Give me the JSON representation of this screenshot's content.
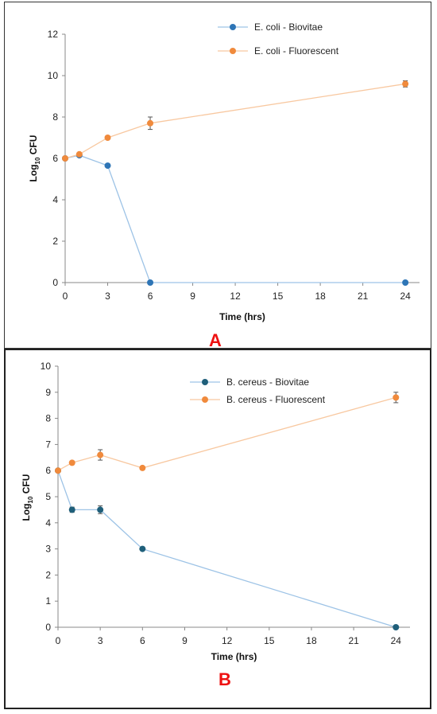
{
  "chart_data": [
    {
      "panel_label": "A",
      "type": "line",
      "xlabel": "Time (hrs)",
      "ylabel": "Log",
      "ylabel_sub": "10",
      "ylabel_suffix": " CFU",
      "xlim": [
        0,
        25
      ],
      "xticks": [
        0,
        3,
        6,
        9,
        12,
        15,
        18,
        21,
        24
      ],
      "ylim": [
        0,
        12
      ],
      "yticks": [
        0,
        2,
        4,
        6,
        8,
        10,
        12
      ],
      "grid": false,
      "legend_position": "top-right",
      "series": [
        {
          "name": "E. coli - Biovitae",
          "color": "#2e75b6",
          "line_color": "#9dc3e6",
          "x": [
            0,
            1,
            3,
            6,
            24
          ],
          "y": [
            6.0,
            6.15,
            5.65,
            0,
            0
          ],
          "err": [
            0,
            0,
            0,
            0,
            0
          ]
        },
        {
          "name": "E. coli - Fluorescent",
          "color": "#f08a3c",
          "line_color": "#f8c8a0",
          "x": [
            0,
            1,
            3,
            6,
            24
          ],
          "y": [
            6.0,
            6.2,
            7.0,
            7.7,
            9.6
          ],
          "err": [
            0,
            0.05,
            0.05,
            0.3,
            0.15
          ]
        }
      ]
    },
    {
      "panel_label": "B",
      "type": "line",
      "xlabel": "Time (hrs)",
      "ylabel": "Log",
      "ylabel_sub": "10",
      "ylabel_suffix": " CFU",
      "xlim": [
        0,
        25
      ],
      "xticks": [
        0,
        3,
        6,
        9,
        12,
        15,
        18,
        21,
        24
      ],
      "ylim": [
        0,
        10
      ],
      "yticks": [
        0,
        1,
        2,
        3,
        4,
        5,
        6,
        7,
        8,
        9,
        10
      ],
      "grid": false,
      "legend_position": "top-right",
      "series": [
        {
          "name": "B. cereus - Biovitae",
          "color": "#1f5f7a",
          "line_color": "#9dc3e6",
          "x": [
            0,
            1,
            3,
            6,
            24
          ],
          "y": [
            6.0,
            4.5,
            4.5,
            3.0,
            0
          ],
          "err": [
            0,
            0.1,
            0.15,
            0,
            0
          ]
        },
        {
          "name": "B. cereus - Fluorescent",
          "color": "#f08a3c",
          "line_color": "#f8c8a0",
          "x": [
            0,
            1,
            3,
            6,
            24
          ],
          "y": [
            6.0,
            6.3,
            6.6,
            6.1,
            8.8
          ],
          "err": [
            0,
            0.05,
            0.2,
            0.05,
            0.2
          ]
        }
      ]
    }
  ]
}
